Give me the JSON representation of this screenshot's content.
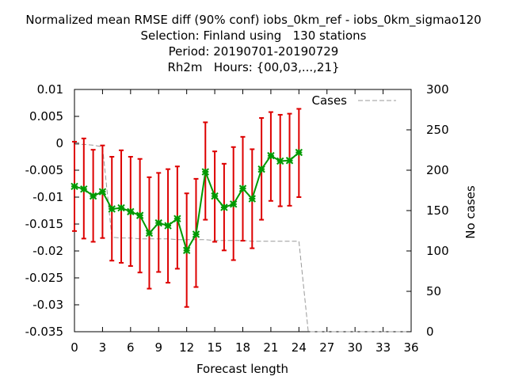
{
  "chart_data": {
    "type": "line",
    "title_lines": [
      "Normalized mean RMSE diff (90% conf) iobs_0km_ref - iobs_0km_sigmao120",
      "Selection: Finland using   130 stations",
      "Period: 20190701-20190729",
      "Rh2m   Hours: {00,03,...,21}"
    ],
    "xlabel": "Forecast length",
    "ylabel": "",
    "y2label": "No cases",
    "xlim": [
      0,
      36
    ],
    "ylim": [
      -0.035,
      0.01
    ],
    "y2lim": [
      0,
      300
    ],
    "xticks": [
      "0",
      "3",
      "6",
      "9",
      "12",
      "15",
      "18",
      "21",
      "24",
      "27",
      "30",
      "33",
      "36"
    ],
    "yticks": [
      "0.01",
      "0.005",
      "0",
      "-0.005",
      "-0.01",
      "-0.015",
      "-0.02",
      "-0.025",
      "-0.03",
      "-0.035"
    ],
    "y2ticks": [
      "300",
      "250",
      "200",
      "150",
      "100",
      "50",
      "0"
    ],
    "legend": "top-right",
    "series": [
      {
        "name": "",
        "color": "#009900",
        "x": [
          0,
          1,
          2,
          3,
          4,
          5,
          6,
          7,
          8,
          9,
          10,
          11,
          12,
          13,
          14,
          15,
          16,
          17,
          18,
          19,
          20,
          21,
          22,
          23,
          24
        ],
        "values": [
          -0.008,
          -0.0085,
          -0.0098,
          -0.009,
          -0.0122,
          -0.012,
          -0.0127,
          -0.0134,
          -0.0167,
          -0.0148,
          -0.0153,
          -0.014,
          -0.0199,
          -0.0169,
          -0.0053,
          -0.0098,
          -0.0119,
          -0.0113,
          -0.0084,
          -0.0103,
          -0.0048,
          -0.0023,
          -0.0033,
          -0.0032,
          -0.0017
        ],
        "err_low": [
          -0.0163,
          -0.0177,
          -0.0183,
          -0.0176,
          -0.0218,
          -0.0222,
          -0.0228,
          -0.024,
          -0.027,
          -0.0239,
          -0.0259,
          -0.0233,
          -0.0304,
          -0.0267,
          -0.0142,
          -0.0183,
          -0.0199,
          -0.0217,
          -0.0181,
          -0.0195,
          -0.0142,
          -0.0107,
          -0.0117,
          -0.0116,
          -0.01
        ],
        "err_high": [
          0.0003,
          0.0009,
          -0.0012,
          -0.0004,
          -0.0025,
          -0.0013,
          -0.0025,
          -0.0029,
          -0.0063,
          -0.0055,
          -0.0048,
          -0.0043,
          -0.0093,
          -0.0066,
          0.0039,
          -0.0015,
          -0.0038,
          -0.0007,
          0.0012,
          -0.0011,
          0.0047,
          0.0058,
          0.0053,
          0.0055,
          0.0064
        ],
        "err_color": "#dd0000"
      },
      {
        "name": "Cases",
        "axis": "y2",
        "color": "#999999",
        "x": [
          0,
          1,
          2,
          3,
          4,
          5,
          6,
          7,
          8,
          9,
          10,
          11,
          12,
          13,
          14,
          15,
          16,
          17,
          18,
          19,
          20,
          21,
          22,
          23,
          24,
          25,
          26,
          27,
          28,
          29,
          30,
          31,
          32,
          33,
          34,
          35,
          36
        ],
        "values": [
          232,
          232,
          231,
          229,
          117,
          116,
          116,
          115,
          115,
          115,
          115,
          114,
          114,
          114,
          114,
          113,
          113,
          113,
          113,
          112,
          112,
          112,
          112,
          112,
          112,
          0,
          0,
          0,
          0,
          0,
          0,
          0,
          0,
          0,
          0,
          0,
          0
        ]
      }
    ]
  }
}
